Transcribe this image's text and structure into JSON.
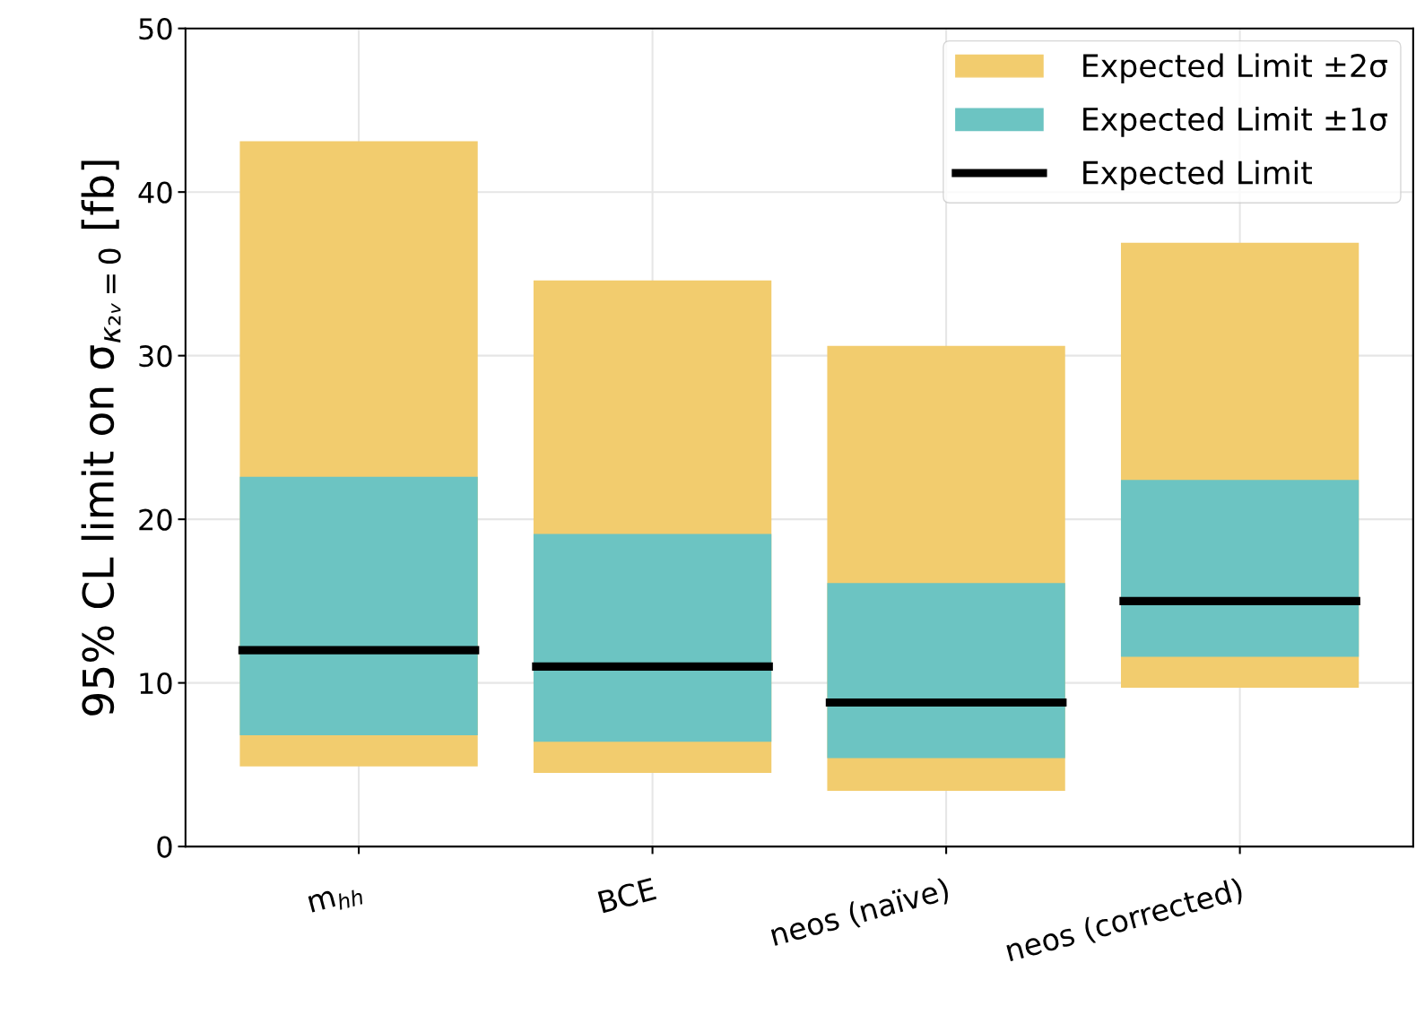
{
  "chart_data": {
    "type": "bar",
    "ylabel": "95% CL limit on σ$_{κ₂ᵥ=0}$ [fb]",
    "categories": [
      "m$_{hh}$",
      "BCE",
      "neos (naïve)",
      "neos (corrected)"
    ],
    "series": [
      {
        "name": "Expected Limit ±2σ",
        "color": "#f2cc6e",
        "base": [
          4.9,
          4.5,
          3.4,
          9.7
        ],
        "values": [
          38.2,
          30.1,
          27.2,
          27.2
        ]
      },
      {
        "name": "Expected Limit ±1σ",
        "color": "#6cc4c2",
        "base": [
          6.8,
          6.4,
          5.4,
          11.6
        ],
        "values": [
          15.8,
          12.7,
          10.7,
          10.8
        ]
      },
      {
        "name": "Expected Limit",
        "color": "#000000",
        "base": [
          12.0,
          11.0,
          8.8,
          15.0
        ],
        "values": [
          0,
          0,
          0,
          0
        ]
      }
    ],
    "ylim": [
      0,
      50
    ],
    "yticks": [
      0,
      10,
      20,
      30,
      40,
      50
    ],
    "grid": true,
    "legend": "top right"
  }
}
